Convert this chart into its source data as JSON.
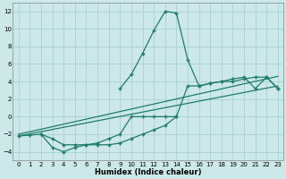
{
  "xlabel": "Humidex (Indice chaleur)",
  "background_color": "#cce8e8",
  "grid_color": "#afd4d4",
  "line_color": "#1e7b6b",
  "xlim": [
    -0.5,
    23.5
  ],
  "ylim": [
    -5.0,
    13.0
  ],
  "xticks": [
    0,
    1,
    2,
    3,
    4,
    5,
    6,
    7,
    8,
    9,
    10,
    11,
    12,
    13,
    14,
    15,
    16,
    17,
    18,
    19,
    20,
    21,
    22,
    23
  ],
  "yticks": [
    -4,
    -2,
    0,
    2,
    4,
    6,
    8,
    10,
    12
  ],
  "series_peak_x": [
    9,
    10,
    11,
    12,
    13,
    14,
    15,
    16,
    17,
    18,
    19,
    20,
    21,
    22,
    23
  ],
  "series_peak_y": [
    3.2,
    4.8,
    7.2,
    9.8,
    12.0,
    11.8,
    6.5,
    3.5,
    3.8,
    4.0,
    4.3,
    4.5,
    3.2,
    4.5,
    3.2
  ],
  "series_low_x": [
    2,
    3,
    4,
    5,
    6,
    7,
    8,
    9,
    10,
    11,
    12,
    13,
    14
  ],
  "series_low_y": [
    -2.0,
    -3.5,
    -4.0,
    -3.5,
    -3.2,
    -3.2,
    -3.2,
    -3.0,
    -2.5,
    -2.0,
    -1.5,
    -1.0,
    0.0
  ],
  "series_line1_x": [
    0,
    23
  ],
  "series_line1_y": [
    -2.2,
    3.5
  ],
  "series_line2_x": [
    0,
    23
  ],
  "series_line2_y": [
    -2.0,
    4.6
  ],
  "series_flat_x": [
    0,
    1,
    2,
    3,
    4,
    5,
    6,
    7,
    8,
    9,
    10,
    11,
    12,
    13,
    14,
    15,
    16,
    17,
    18,
    19,
    20,
    21,
    22,
    23
  ],
  "series_flat_y": [
    -2.2,
    -2.1,
    -2.0,
    -2.5,
    -3.2,
    -3.2,
    -3.2,
    -3.0,
    -2.5,
    -2.0,
    0.0,
    0.0,
    0.0,
    0.0,
    0.0,
    3.5,
    3.5,
    3.8,
    4.0,
    4.0,
    4.3,
    4.5,
    4.5,
    3.2
  ]
}
